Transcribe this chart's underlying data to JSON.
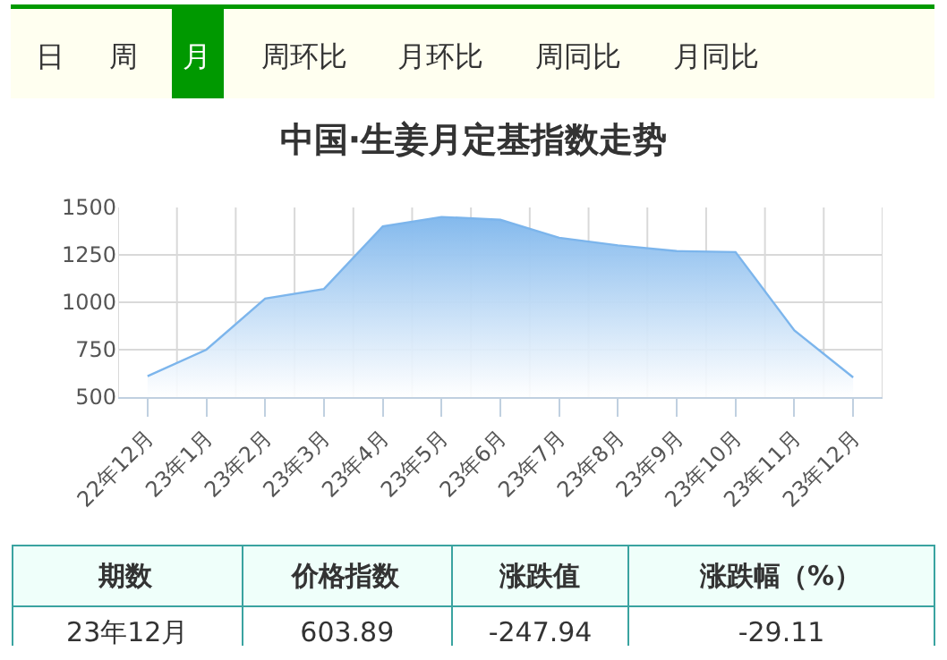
{
  "chart_data": {
    "type": "area",
    "title": "中国·生姜月定基指数走势",
    "categories": [
      "22年12月",
      "23年1月",
      "23年2月",
      "23年3月",
      "23年4月",
      "23年5月",
      "23年6月",
      "23年7月",
      "23年8月",
      "23年9月",
      "23年10月",
      "23年11月",
      "23年12月"
    ],
    "series": [
      {
        "color": "#7cb5ec",
        "values": [
          610,
          750,
          1020,
          1070,
          1400,
          1450,
          1435,
          1340,
          1300,
          1270,
          1265,
          852,
          604
        ]
      }
    ],
    "ylim": [
      500,
      1500
    ],
    "yticks": [
      500,
      750,
      1000,
      1250,
      1500
    ],
    "grid": true,
    "legend": false,
    "annotations": [
      "日",
      "周",
      "月",
      "周环比",
      "月环比",
      "周同比",
      "月同比",
      "期数",
      "价格指数",
      "涨跌值",
      "涨跌幅（%）",
      "23年12月",
      "603.89",
      "-247.94",
      "-29.11"
    ]
  }
}
